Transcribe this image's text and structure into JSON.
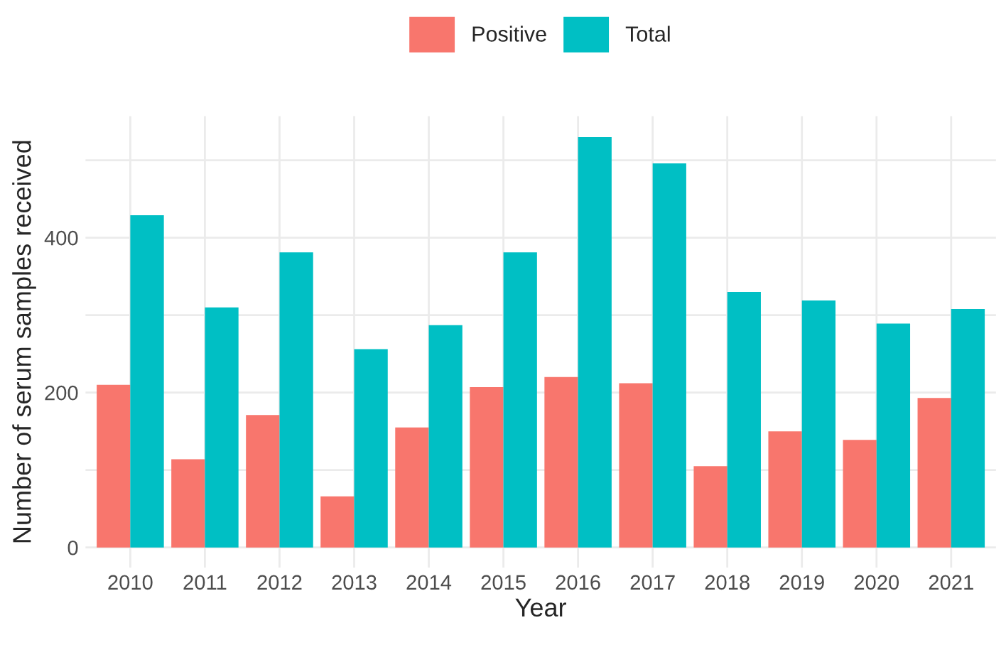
{
  "chart_data": {
    "type": "bar",
    "xlabel": "Year",
    "ylabel": "Number of serum samples received",
    "categories": [
      "2010",
      "2011",
      "2012",
      "2013",
      "2014",
      "2015",
      "2016",
      "2017",
      "2018",
      "2019",
      "2020",
      "2021"
    ],
    "series": [
      {
        "name": "Positive",
        "color": "#f8766d",
        "values": [
          210,
          114,
          171,
          66,
          155,
          207,
          220,
          212,
          105,
          150,
          139,
          193
        ]
      },
      {
        "name": "Total",
        "color": "#00bfc4",
        "values": [
          429,
          310,
          381,
          256,
          287,
          381,
          530,
          496,
          330,
          319,
          289,
          308
        ]
      }
    ],
    "ylim": [
      -26,
      557
    ],
    "yticks": [
      0,
      {
        "value": 100,
        "label": null
      },
      200,
      {
        "value": 300,
        "label": null
      },
      400,
      {
        "value": 500,
        "label": null
      }
    ],
    "grid": true,
    "legend": "top"
  }
}
